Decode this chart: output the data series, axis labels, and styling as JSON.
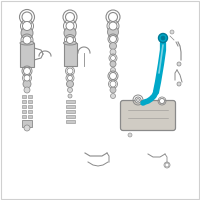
{
  "bg_color": "#ffffff",
  "border_color": "#d0d0d0",
  "gc": "#8a8a8a",
  "gc2": "#aaaaaa",
  "gc_dark": "#606060",
  "gc_fill": "#c8c8c8",
  "gc_fill2": "#d8d8d8",
  "hc": "#00a8c8",
  "hc_dark": "#007a96",
  "figsize": [
    2.0,
    2.0
  ],
  "dpi": 100
}
